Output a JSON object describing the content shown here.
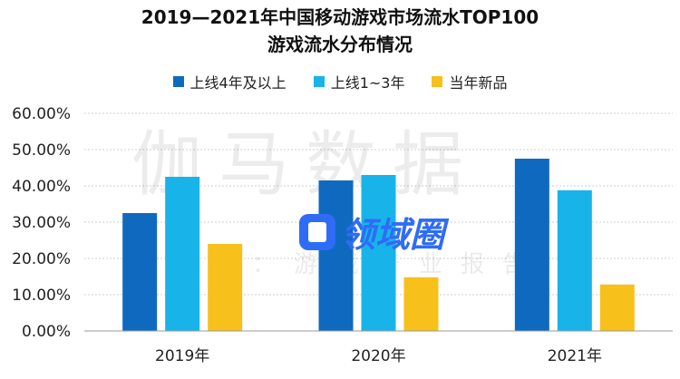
{
  "title_lines": [
    "2019—2021年中国移动游戏市场流水TOP100",
    "游戏流水分布情况"
  ],
  "watermarks": {
    "main": "伽马数据",
    "sub": "微信号：游戏产业报告",
    "logo": "领域圈"
  },
  "colors": {
    "grid": "#cfcfcf",
    "axis": "#999999"
  },
  "chart_data": {
    "type": "bar",
    "categories": [
      "2019年",
      "2020年",
      "2021年"
    ],
    "series": [
      {
        "name": "上线4年及以上",
        "color": "#0f6abf",
        "values": [
          32.5,
          41.5,
          47.5
        ]
      },
      {
        "name": "上线1~3年",
        "color": "#18b4e9",
        "values": [
          42.5,
          43.0,
          38.8
        ]
      },
      {
        "name": "当年新品",
        "color": "#f7c01a",
        "values": [
          24.0,
          14.8,
          12.8
        ]
      }
    ],
    "yticks": [
      "0.00%",
      "10.00%",
      "20.00%",
      "30.00%",
      "40.00%",
      "50.00%",
      "60.00%"
    ],
    "ylim": [
      0,
      60
    ],
    "grid": true,
    "legend_position": "top-center",
    "xlabel": "",
    "ylabel": ""
  }
}
